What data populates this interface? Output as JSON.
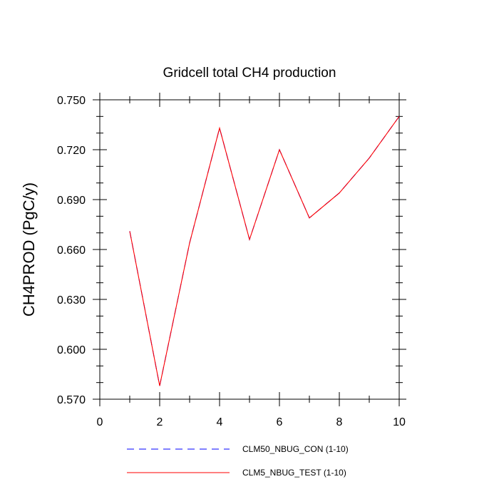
{
  "chart_data": {
    "type": "line",
    "title": "Gridcell total CH4 production",
    "xlabel": "",
    "ylabel": "CH4PROD  (PgC/y)",
    "xlim": [
      0,
      10
    ],
    "ylim": [
      0.57,
      0.75
    ],
    "x_ticks": [
      "0",
      "2",
      "4",
      "6",
      "8",
      "10"
    ],
    "y_ticks": [
      "0.570",
      "0.600",
      "0.630",
      "0.660",
      "0.690",
      "0.720",
      "0.750"
    ],
    "x": [
      1,
      2,
      3,
      4,
      5,
      6,
      7,
      8,
      9,
      10
    ],
    "series": [
      {
        "name": "CLM50_NBUG_CON (1-10)",
        "color": "#0000ff",
        "dash": "dashed",
        "values": [
          0.671,
          0.578,
          0.664,
          0.733,
          0.666,
          0.72,
          0.679,
          0.694,
          0.715,
          0.74
        ]
      },
      {
        "name": "CLM5_NBUG_TEST (1-10)",
        "color": "#ff0000",
        "dash": "solid",
        "values": [
          0.671,
          0.578,
          0.664,
          0.733,
          0.666,
          0.72,
          0.679,
          0.694,
          0.715,
          0.74
        ]
      }
    ],
    "grid": false,
    "legend_placement": "bottom"
  }
}
